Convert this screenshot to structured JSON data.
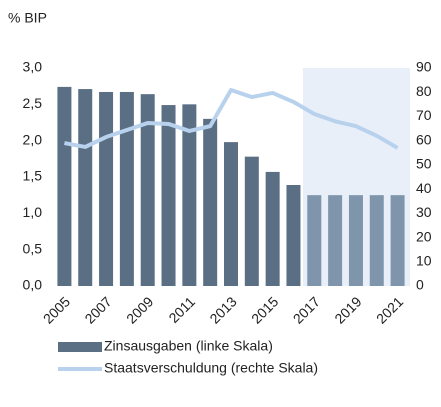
{
  "chart_data": {
    "type": "bar",
    "ylabel": "% BIP",
    "categories": [
      "2005",
      null,
      "2007",
      null,
      "2009",
      null,
      "2011",
      null,
      "2013",
      null,
      "2015",
      null,
      "2017",
      null,
      "2019",
      null,
      "2021"
    ],
    "series": [
      {
        "name": "Zinsausgaben (linke Skala)",
        "type": "bar",
        "color": "#5b6f84",
        "colors": [
          "#5b6f84",
          "#5b6f84",
          "#5b6f84",
          "#5b6f84",
          "#5b6f84",
          "#5b6f84",
          "#5b6f84",
          "#5b6f84",
          "#5b6f84",
          "#5b6f84",
          "#5b6f84",
          "#5b6f84",
          "#7f95ab",
          "#7f95ab",
          "#7f95ab",
          "#7f95ab",
          "#7f95ab"
        ],
        "values": [
          2.74,
          2.71,
          2.67,
          2.67,
          2.64,
          2.49,
          2.5,
          2.3,
          1.98,
          1.78,
          1.57,
          1.39,
          1.25,
          1.25,
          1.25,
          1.25,
          1.25
        ]
      },
      {
        "name": "Staatsverschuldung (rechte Skala)",
        "type": "line",
        "axis": "y2",
        "color": "#b8d2ee",
        "values": [
          59,
          57.4,
          61.5,
          64.4,
          67.3,
          66.9,
          64,
          66,
          80.9,
          78,
          79.7,
          76,
          71,
          68,
          66,
          62,
          57
        ]
      }
    ],
    "ylim": [
      0,
      3
    ],
    "yticks": [
      {
        "value": 0,
        "label": "0,0"
      },
      {
        "value": 0.5,
        "label": "0,5"
      },
      {
        "value": 1,
        "label": "1,0"
      },
      {
        "value": 1.5,
        "label": "1,5"
      },
      {
        "value": 2,
        "label": "2,0"
      },
      {
        "value": 2.5,
        "label": "2,5"
      },
      {
        "value": 3,
        "label": "3,0"
      }
    ],
    "y2lim": [
      0,
      90
    ],
    "y2ticks": [
      0,
      10,
      20,
      30,
      40,
      50,
      60,
      70,
      80,
      90
    ],
    "grid": false
  }
}
